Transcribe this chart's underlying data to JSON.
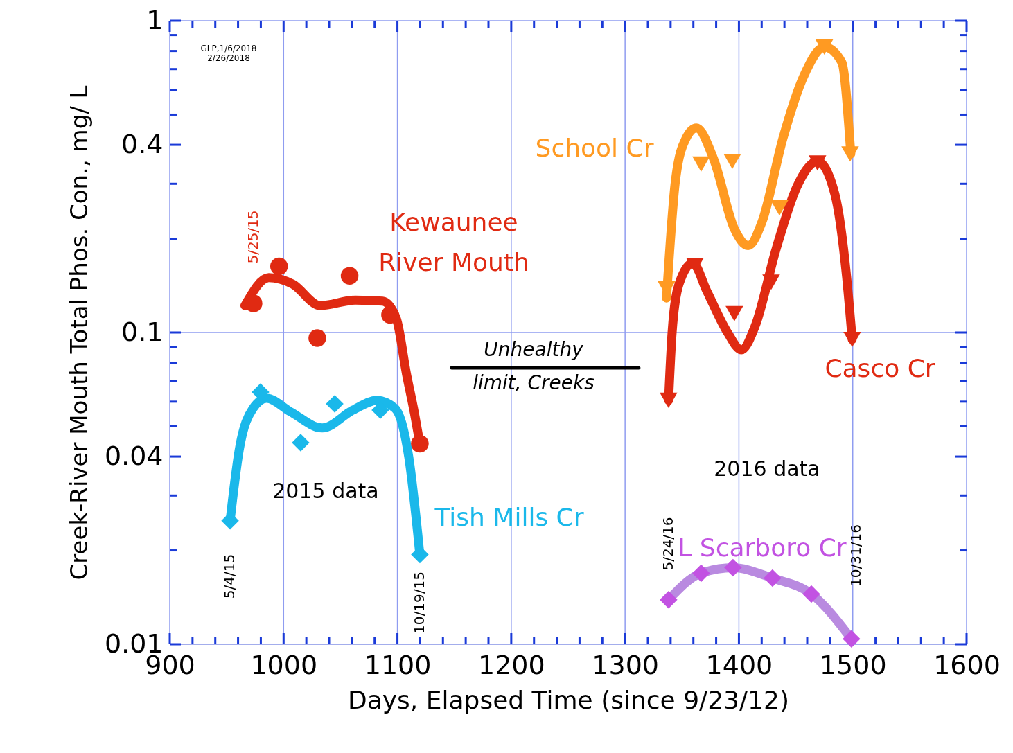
{
  "chart_data": {
    "type": "scatter",
    "xlabel": "Days, Elapsed Time (since 9/23/12)",
    "ylabel": "Creek-River Mouth Total Phos. Con., mg/ L",
    "xlim": [
      900,
      1600
    ],
    "xticks": [
      900,
      {
        "value": 920,
        "label": null
      },
      {
        "value": 940,
        "label": null
      },
      {
        "value": 960,
        "label": null
      },
      {
        "value": 980,
        "label": null
      },
      1000,
      {
        "value": 1020,
        "label": null
      },
      {
        "value": 1040,
        "label": null
      },
      {
        "value": 1060,
        "label": null
      },
      {
        "value": 1080,
        "label": null
      },
      1100,
      {
        "value": 1120,
        "label": null
      },
      {
        "value": 1140,
        "label": null
      },
      {
        "value": 1160,
        "label": null
      },
      {
        "value": 1180,
        "label": null
      },
      1200,
      {
        "value": 1220,
        "label": null
      },
      {
        "value": 1240,
        "label": null
      },
      {
        "value": 1260,
        "label": null
      },
      {
        "value": 1280,
        "label": null
      },
      1300,
      {
        "value": 1320,
        "label": null
      },
      {
        "value": 1340,
        "label": null
      },
      {
        "value": 1360,
        "label": null
      },
      {
        "value": 1380,
        "label": null
      },
      1400,
      {
        "value": 1420,
        "label": null
      },
      {
        "value": 1440,
        "label": null
      },
      {
        "value": 1460,
        "label": null
      },
      {
        "value": 1480,
        "label": null
      },
      1500,
      {
        "value": 1520,
        "label": null
      },
      {
        "value": 1540,
        "label": null
      },
      {
        "value": 1560,
        "label": null
      },
      {
        "value": 1580,
        "label": null
      },
      1600
    ],
    "ylim": [
      0.01,
      1
    ],
    "yticks": [
      0.01,
      {
        "value": 0.02,
        "label": null
      },
      {
        "value": 0.03,
        "label": null
      },
      0.04,
      {
        "value": 0.05,
        "label": null
      },
      {
        "value": 0.06,
        "label": null
      },
      {
        "value": 0.07,
        "label": null
      },
      {
        "value": 0.08,
        "label": null
      },
      {
        "value": 0.09,
        "label": null
      },
      0.1,
      {
        "value": 0.2,
        "label": null
      },
      {
        "value": 0.3,
        "label": null
      },
      0.4,
      {
        "value": 0.5,
        "label": null
      },
      {
        "value": 0.6,
        "label": null
      },
      {
        "value": 0.7,
        "label": null
      },
      {
        "value": 0.8,
        "label": null
      },
      {
        "value": 0.9,
        "label": null
      },
      1
    ],
    "log": true,
    "grid": true,
    "series": [
      {
        "name": "Kewaunee\nRiver Mouth",
        "marker": "circle",
        "color": "#e02a12",
        "x": [
          973.6,
          996,
          1029.6,
          1058,
          1093.5,
          1119.7
        ],
        "values": [
          0.124,
          0.163,
          0.096,
          0.152,
          0.114,
          0.044
        ]
      },
      {
        "type": "line",
        "color": "#e02a12",
        "x": [
          966,
          987,
          1008,
          1032,
          1063,
          1087,
          1099,
          1108,
          1115,
          1119.7
        ],
        "values": [
          0.122,
          0.15,
          0.143,
          0.122,
          0.127,
          0.126,
          0.111,
          0.0735,
          0.055,
          0.044
        ]
      },
      {
        "name": "Tish Mills Cr",
        "marker": "diamond",
        "color": "#1ab8ea",
        "x": [
          953,
          979.7,
          1015,
          1044.9,
          1085,
          1119.7
        ],
        "values": [
          0.0249,
          0.0644,
          0.0443,
          0.059,
          0.0564,
          0.0194
        ]
      },
      {
        "type": "line",
        "color": "#1ab8ea",
        "x": [
          953,
          961,
          973,
          985,
          1006,
          1034,
          1061,
          1082,
          1098,
          1110,
          1119.7
        ],
        "values": [
          0.0249,
          0.042,
          0.057,
          0.0615,
          0.0557,
          0.0494,
          0.0564,
          0.0606,
          0.0571,
          0.0398,
          0.0194
        ]
      },
      {
        "name": "School Cr",
        "marker": "triangle",
        "color": "#ff9a22",
        "x": [
          1336.4,
          1366.8,
          1394.2,
          1435.6,
          1475,
          1497.7
        ],
        "values": [
          0.138,
          0.347,
          0.354,
          0.251,
          0.823,
          0.374
        ]
      },
      {
        "type": "line",
        "color": "#ff9a22",
        "x": [
          1336.4,
          1344.3,
          1353.4,
          1362.6,
          1377.8,
          1396,
          1408.2,
          1420.4,
          1438.6,
          1456.9,
          1475.2,
          1490.4,
          1498.3
        ],
        "values": [
          0.129,
          0.308,
          0.419,
          0.453,
          0.36,
          0.215,
          0.19,
          0.227,
          0.419,
          0.664,
          0.823,
          0.736,
          0.374
        ]
      },
      {
        "name": "Casco Cr",
        "marker": "triangle",
        "color": "#e02a12",
        "x": [
          1338.2,
          1361.4,
          1396,
          1428.3,
          1469,
          1499.5
        ],
        "values": [
          0.0606,
          0.164,
          0.115,
          0.145,
          0.35,
          0.095
        ]
      },
      {
        "type": "line",
        "color": "#e02a12",
        "x": [
          1338.2,
          1341.3,
          1347.4,
          1359.5,
          1371.7,
          1390,
          1402.1,
          1414.3,
          1432.6,
          1450.8,
          1469.1,
          1484.3,
          1494.6,
          1499.5
        ],
        "values": [
          0.0606,
          0.1,
          0.143,
          0.167,
          0.136,
          0.1,
          0.088,
          0.105,
          0.185,
          0.293,
          0.354,
          0.278,
          0.151,
          0.095
        ]
      },
      {
        "name": "L Scarboro Cr",
        "marker": "diamond",
        "color": "#c252e2",
        "x": [
          1338.2,
          1366.8,
          1394.8,
          1429.5,
          1463.6,
          1498.9
        ],
        "values": [
          0.0139,
          0.0169,
          0.0176,
          0.0163,
          0.0145,
          0.0104
        ]
      },
      {
        "type": "line",
        "color": "#b98ae0",
        "x": [
          1338.2,
          1366.8,
          1394.8,
          1429.5,
          1463.6,
          1498.9
        ],
        "values": [
          0.0139,
          0.0169,
          0.0176,
          0.0163,
          0.0145,
          0.0104
        ]
      },
      {
        "name": "Unhealthy\nlimit, Creeks",
        "type": "line",
        "color": "#000000",
        "x": [
          1147.7,
          1312
        ],
        "values": [
          0.077,
          0.077
        ]
      }
    ],
    "annotations": [
      "GLP,1/6/2018\n2/26/2018",
      "2015 data",
      "2016 data",
      "5/25/15",
      "5/4/15",
      "10/19/15",
      "5/24/16",
      "10/31/16"
    ]
  }
}
